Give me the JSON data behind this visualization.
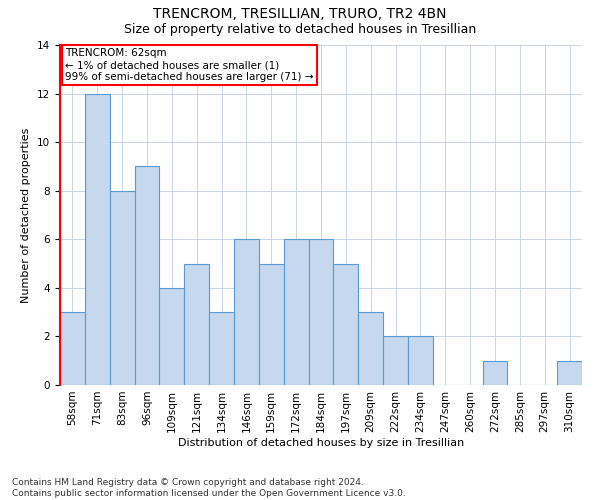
{
  "title": "TRENCROM, TRESILLIAN, TRURO, TR2 4BN",
  "subtitle": "Size of property relative to detached houses in Tresillian",
  "xlabel": "Distribution of detached houses by size in Tresillian",
  "ylabel": "Number of detached properties",
  "bar_labels": [
    "58sqm",
    "71sqm",
    "83sqm",
    "96sqm",
    "109sqm",
    "121sqm",
    "134sqm",
    "146sqm",
    "159sqm",
    "172sqm",
    "184sqm",
    "197sqm",
    "209sqm",
    "222sqm",
    "234sqm",
    "247sqm",
    "260sqm",
    "272sqm",
    "285sqm",
    "297sqm",
    "310sqm"
  ],
  "bar_values": [
    3,
    12,
    8,
    9,
    4,
    5,
    3,
    6,
    5,
    6,
    6,
    5,
    3,
    2,
    2,
    0,
    0,
    1,
    0,
    0,
    1
  ],
  "bar_color": "#c5d8ed",
  "bar_edge_color": "#5b9bd5",
  "annotation_text": "TRENCROM: 62sqm\n← 1% of detached houses are smaller (1)\n99% of semi-detached houses are larger (71) →",
  "ylim": [
    0,
    14
  ],
  "yticks": [
    0,
    2,
    4,
    6,
    8,
    10,
    12,
    14
  ],
  "background_color": "#ffffff",
  "grid_color": "#c8d4e8",
  "title_fontsize": 10,
  "subtitle_fontsize": 9,
  "axis_label_fontsize": 8,
  "tick_fontsize": 7.5,
  "footer": "Contains HM Land Registry data © Crown copyright and database right 2024.\nContains public sector information licensed under the Open Government Licence v3.0.",
  "footer_fontsize": 6.5
}
